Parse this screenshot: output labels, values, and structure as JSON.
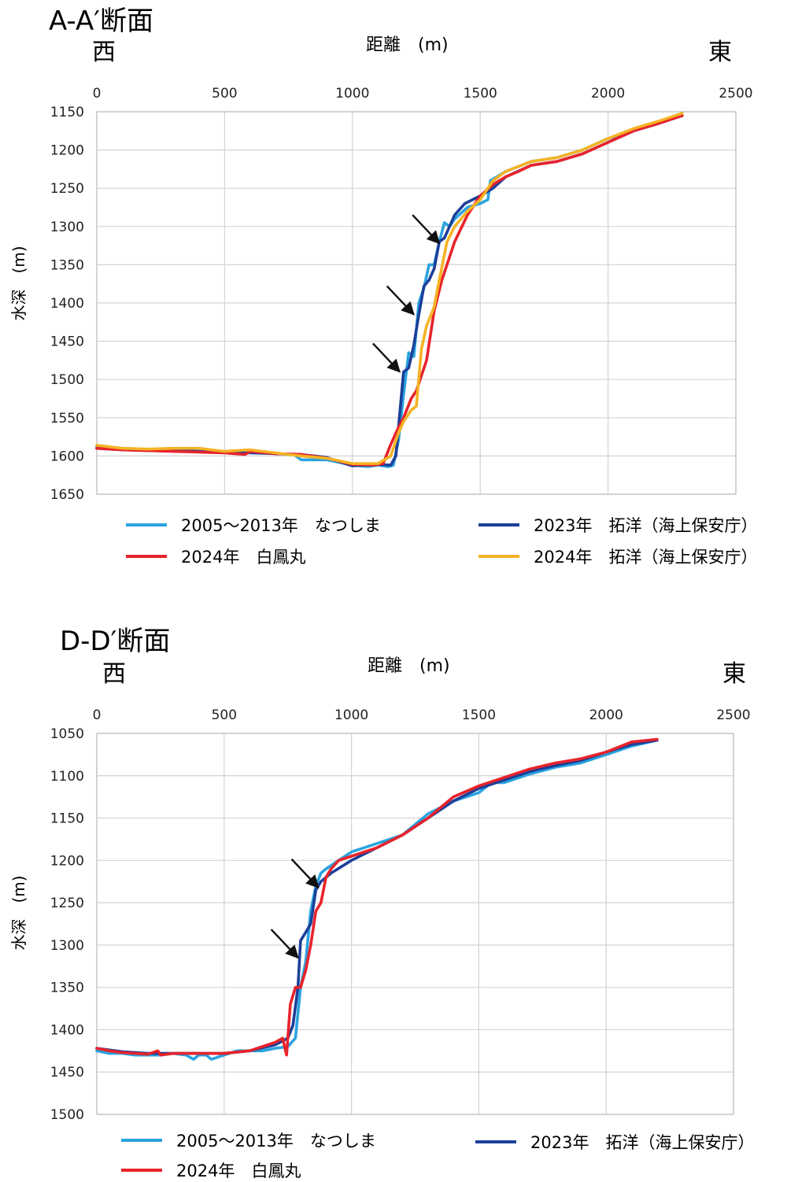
{
  "colors": {
    "series_light_blue": "#2aa3df",
    "series_red": "#e8232b",
    "series_dark_blue": "#1c3f99",
    "series_orange": "#f4b324",
    "grid": "#d3d3d3"
  },
  "chart_data": [
    {
      "type": "line",
      "title": "A-A′断面",
      "west_label": "西",
      "east_label": "東",
      "xlabel": "距離　(m)",
      "ylabel": "水深　(m)",
      "xlim": [
        0,
        2500
      ],
      "ylim": [
        1150,
        1650
      ],
      "x_ticks": [
        0,
        500,
        1000,
        1500,
        2000,
        2500
      ],
      "y_ticks": [
        1150,
        1200,
        1250,
        1300,
        1350,
        1400,
        1450,
        1500,
        1550,
        1600,
        1650
      ],
      "grid": true,
      "x_axis_position": "top",
      "y_axis_inverted": true,
      "legend_position": "bottom",
      "series": [
        {
          "name": "2005～2013年　なつしま",
          "color": "#2aa3df",
          "x": [
            0,
            100,
            200,
            300,
            400,
            500,
            600,
            700,
            770,
            800,
            900,
            1000,
            1060,
            1100,
            1140,
            1160,
            1180,
            1200,
            1220,
            1240,
            1260,
            1280,
            1300,
            1320,
            1340,
            1360,
            1380,
            1400,
            1450,
            1500,
            1530,
            1540,
            1600,
            1700,
            1800,
            1900,
            2000,
            2100,
            2200,
            2290
          ],
          "y": [
            1588,
            1590,
            1592,
            1592,
            1590,
            1595,
            1595,
            1597,
            1598,
            1605,
            1605,
            1612,
            1614,
            1612,
            1614,
            1612,
            1580,
            1520,
            1465,
            1470,
            1400,
            1380,
            1350,
            1350,
            1320,
            1295,
            1300,
            1290,
            1275,
            1270,
            1265,
            1240,
            1228,
            1215,
            1210,
            1200,
            1185,
            1175,
            1165,
            1155
          ]
        },
        {
          "name": "2023年　拓洋（海上保安庁）",
          "color": "#1c3f99",
          "x": [
            0,
            100,
            200,
            300,
            400,
            500,
            600,
            700,
            800,
            900,
            1000,
            1100,
            1150,
            1170,
            1200,
            1220,
            1240,
            1260,
            1280,
            1300,
            1320,
            1340,
            1360,
            1380,
            1400,
            1440,
            1500,
            1550,
            1600,
            1700,
            1800,
            1900,
            2000,
            2100,
            2200,
            2290
          ],
          "y": [
            1590,
            1592,
            1593,
            1593,
            1594,
            1595,
            1596,
            1597,
            1598,
            1602,
            1613,
            1611,
            1612,
            1600,
            1490,
            1485,
            1455,
            1415,
            1378,
            1370,
            1355,
            1320,
            1315,
            1300,
            1285,
            1270,
            1260,
            1250,
            1235,
            1220,
            1215,
            1205,
            1190,
            1175,
            1165,
            1155
          ]
        },
        {
          "name": "2024年　白鳳丸",
          "color": "#e8232b",
          "x": [
            0,
            100,
            200,
            300,
            400,
            500,
            580,
            600,
            700,
            800,
            900,
            1000,
            1080,
            1120,
            1150,
            1170,
            1200,
            1230,
            1250,
            1270,
            1290,
            1320,
            1350,
            1400,
            1450,
            1500,
            1550,
            1600,
            1650,
            1700,
            1800,
            1900,
            2000,
            2100,
            2200,
            2290
          ],
          "y": [
            1590,
            1592,
            1593,
            1594,
            1595,
            1596,
            1598,
            1594,
            1597,
            1598,
            1603,
            1611,
            1612,
            1610,
            1585,
            1570,
            1550,
            1525,
            1515,
            1495,
            1475,
            1410,
            1370,
            1320,
            1285,
            1260,
            1245,
            1235,
            1228,
            1220,
            1215,
            1205,
            1190,
            1175,
            1165,
            1155
          ]
        },
        {
          "name": "2024年　拓洋（海上保安庁）",
          "color": "#f4b324",
          "x": [
            0,
            100,
            200,
            300,
            400,
            500,
            600,
            700,
            800,
            900,
            1000,
            1100,
            1150,
            1180,
            1200,
            1230,
            1250,
            1270,
            1290,
            1320,
            1340,
            1370,
            1400,
            1450,
            1500,
            1550,
            1600,
            1700,
            1800,
            1900,
            2000,
            2100,
            2200,
            2290
          ],
          "y": [
            1586,
            1590,
            1591,
            1590,
            1590,
            1594,
            1592,
            1596,
            1600,
            1603,
            1610,
            1610,
            1600,
            1570,
            1555,
            1540,
            1535,
            1460,
            1430,
            1405,
            1370,
            1320,
            1300,
            1280,
            1265,
            1240,
            1228,
            1215,
            1210,
            1200,
            1185,
            1172,
            1162,
            1152
          ]
        }
      ],
      "annotations": [
        {
          "type": "arrow",
          "to_x": 1340,
          "to_y": 1322
        },
        {
          "type": "arrow",
          "to_x": 1240,
          "to_y": 1415
        },
        {
          "type": "arrow",
          "to_x": 1185,
          "to_y": 1490
        }
      ]
    },
    {
      "type": "line",
      "title": "D-D′断面",
      "west_label": "西",
      "east_label": "東",
      "xlabel": "距離　(m)",
      "ylabel": "水深　(m)",
      "xlim": [
        0,
        2500
      ],
      "ylim": [
        1050,
        1500
      ],
      "x_ticks": [
        0,
        500,
        1000,
        1500,
        2000,
        2500
      ],
      "y_ticks": [
        1050,
        1100,
        1150,
        1200,
        1250,
        1300,
        1350,
        1400,
        1450,
        1500
      ],
      "grid": true,
      "x_axis_position": "top",
      "y_axis_inverted": true,
      "legend_position": "bottom",
      "series": [
        {
          "name": "2005～2013年　なつしま",
          "color": "#2aa3df",
          "x": [
            0,
            50,
            100,
            150,
            200,
            250,
            300,
            350,
            380,
            400,
            430,
            450,
            500,
            550,
            600,
            650,
            700,
            750,
            780,
            800,
            820,
            840,
            860,
            880,
            900,
            950,
            1000,
            1100,
            1200,
            1300,
            1400,
            1500,
            1550,
            1600,
            1700,
            1800,
            1900,
            2000,
            2100,
            2200
          ],
          "y": [
            1425,
            1428,
            1428,
            1430,
            1430,
            1430,
            1428,
            1430,
            1435,
            1430,
            1430,
            1435,
            1430,
            1425,
            1425,
            1425,
            1422,
            1420,
            1410,
            1350,
            1320,
            1260,
            1230,
            1215,
            1210,
            1200,
            1190,
            1180,
            1170,
            1145,
            1130,
            1120,
            1108,
            1108,
            1098,
            1090,
            1085,
            1075,
            1065,
            1058
          ]
        },
        {
          "name": "2023年　拓洋（海上保安庁）",
          "color": "#1c3f99",
          "x": [
            0,
            100,
            200,
            300,
            400,
            500,
            600,
            700,
            750,
            770,
            790,
            800,
            820,
            840,
            860,
            880,
            920,
            1000,
            1100,
            1200,
            1300,
            1400,
            1500,
            1600,
            1700,
            1800,
            1900,
            2000,
            2100,
            2200
          ],
          "y": [
            1422,
            1426,
            1428,
            1428,
            1428,
            1428,
            1425,
            1418,
            1410,
            1395,
            1350,
            1295,
            1285,
            1275,
            1235,
            1225,
            1215,
            1200,
            1185,
            1170,
            1150,
            1130,
            1115,
            1105,
            1095,
            1088,
            1082,
            1072,
            1063,
            1058
          ]
        },
        {
          "name": "2024年　白鳳丸",
          "color": "#e8232b",
          "x": [
            0,
            50,
            100,
            200,
            240,
            250,
            300,
            400,
            500,
            600,
            650,
            700,
            730,
            745,
            760,
            780,
            800,
            820,
            840,
            860,
            880,
            900,
            920,
            950,
            1000,
            1100,
            1200,
            1300,
            1400,
            1500,
            1600,
            1700,
            1800,
            1900,
            2000,
            2100,
            2200
          ],
          "y": [
            1422,
            1425,
            1427,
            1429,
            1425,
            1430,
            1428,
            1428,
            1428,
            1425,
            1420,
            1415,
            1410,
            1430,
            1370,
            1350,
            1350,
            1330,
            1300,
            1260,
            1250,
            1220,
            1210,
            1200,
            1195,
            1185,
            1170,
            1150,
            1125,
            1112,
            1102,
            1092,
            1085,
            1080,
            1072,
            1060,
            1057
          ]
        }
      ],
      "annotations": [
        {
          "type": "arrow",
          "to_x": 870,
          "to_y": 1232
        },
        {
          "type": "arrow",
          "to_x": 790,
          "to_y": 1315
        }
      ]
    }
  ]
}
